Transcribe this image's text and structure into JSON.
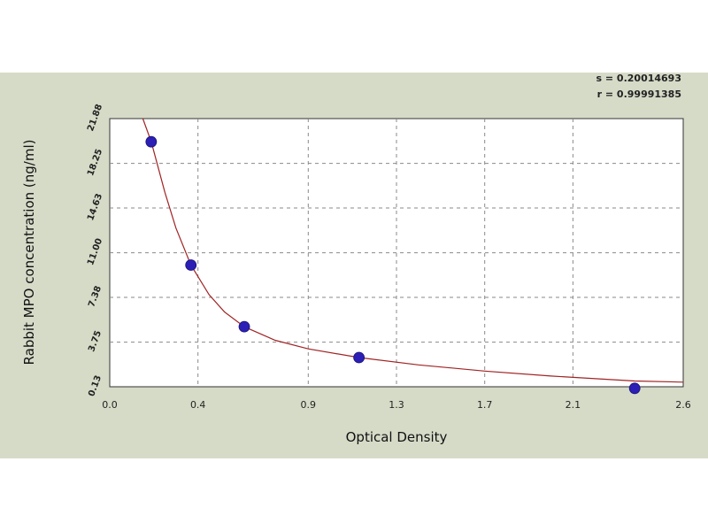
{
  "chart_data": {
    "type": "scatter",
    "title": "",
    "xlabel": "Optical Density",
    "ylabel": "Rabbit MPO concentration (ng/ml)",
    "xlim": [
      0.0,
      2.6
    ],
    "ylim": [
      0.13,
      21.88
    ],
    "x_ticks": [
      "0.0",
      "0.4",
      "0.9",
      "1.3",
      "1.7",
      "2.1",
      "2.6"
    ],
    "y_ticks": [
      "0.13",
      "3.75",
      "7.38",
      "11.00",
      "14.63",
      "18.25",
      "21.88"
    ],
    "grid": true,
    "fit_stats": {
      "s": "s = 0.20014693",
      "r": "r = 0.99991385"
    },
    "points": {
      "x": [
        0.188,
        0.368,
        0.61,
        1.13,
        2.38
      ],
      "y": [
        20.0,
        10.0,
        5.0,
        2.5,
        0.0
      ]
    },
    "fit_curve": {
      "x": [
        0.15,
        0.188,
        0.25,
        0.3,
        0.368,
        0.45,
        0.52,
        0.61,
        0.75,
        0.9,
        1.13,
        1.4,
        1.7,
        2.0,
        2.38,
        2.6
      ],
      "y": [
        21.88,
        20.0,
        15.9,
        13.0,
        10.0,
        7.6,
        6.2,
        5.0,
        3.9,
        3.2,
        2.5,
        1.9,
        1.4,
        1.0,
        0.6,
        0.5
      ]
    },
    "colors": {
      "point": "#2b1fb5",
      "curve": "#a02323",
      "grid": "#8a8a8a",
      "plot_bg": "#ffffff",
      "figure_bg": "#d6dbc8"
    }
  }
}
